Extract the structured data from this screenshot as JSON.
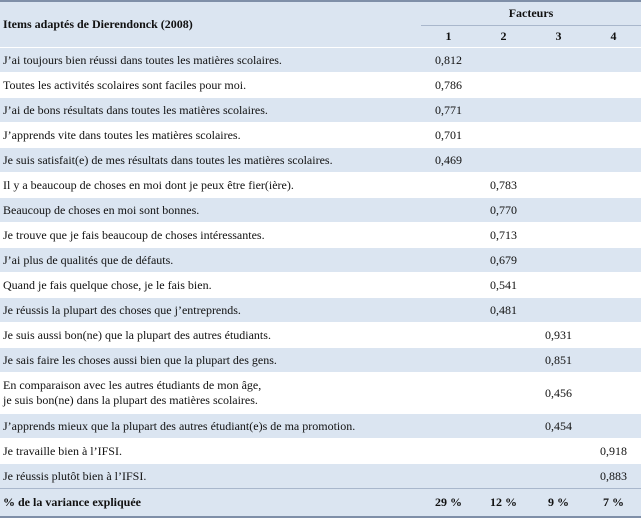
{
  "header": {
    "title": "Items adaptés de Dierendonck (2008)",
    "factors_label": "Facteurs",
    "factor_numbers": [
      "1",
      "2",
      "3",
      "4"
    ]
  },
  "rows": [
    {
      "item": "J’ai toujours bien réussi dans toutes les matières scolaires.",
      "f1": "0,812",
      "f2": "",
      "f3": "",
      "f4": ""
    },
    {
      "item": "Toutes les activités scolaires sont faciles pour moi.",
      "f1": "0,786",
      "f2": "",
      "f3": "",
      "f4": ""
    },
    {
      "item": "J’ai de bons résultats dans toutes les matières scolaires.",
      "f1": "0,771",
      "f2": "",
      "f3": "",
      "f4": ""
    },
    {
      "item": "J’apprends vite dans toutes les matières scolaires.",
      "f1": "0,701",
      "f2": "",
      "f3": "",
      "f4": ""
    },
    {
      "item": "Je suis satisfait(e) de mes résultats dans toutes les matières scolaires.",
      "f1": "0,469",
      "f2": "",
      "f3": "",
      "f4": ""
    },
    {
      "item": "Il y a beaucoup de choses en moi dont je peux être fier(ière).",
      "f1": "",
      "f2": "0,783",
      "f3": "",
      "f4": ""
    },
    {
      "item": "Beaucoup de choses en moi sont bonnes.",
      "f1": "",
      "f2": "0,770",
      "f3": "",
      "f4": ""
    },
    {
      "item": "Je trouve que je fais beaucoup de choses intéressantes.",
      "f1": "",
      "f2": "0,713",
      "f3": "",
      "f4": ""
    },
    {
      "item": "J’ai plus de qualités que de défauts.",
      "f1": "",
      "f2": "0,679",
      "f3": "",
      "f4": ""
    },
    {
      "item": "Quand je fais quelque chose, je le fais bien.",
      "f1": "",
      "f2": "0,541",
      "f3": "",
      "f4": ""
    },
    {
      "item": "Je réussis la plupart des choses que j’entreprends.",
      "f1": "",
      "f2": "0,481",
      "f3": "",
      "f4": ""
    },
    {
      "item": "Je suis aussi bon(ne) que la plupart des autres étudiants.",
      "f1": "",
      "f2": "",
      "f3": "0,931",
      "f4": ""
    },
    {
      "item": "Je sais faire les choses aussi bien que la plupart des gens.",
      "f1": "",
      "f2": "",
      "f3": "0,851",
      "f4": ""
    },
    {
      "item_line1": "En comparaison avec les autres étudiants de mon âge,",
      "item_line2": "je suis bon(ne) dans la plupart des matières scolaires.",
      "f1": "",
      "f2": "",
      "f3": "0,456",
      "f4": ""
    },
    {
      "item": "J’apprends mieux que la plupart des autres étudiant(e)s de ma promotion.",
      "f1": "",
      "f2": "",
      "f3": "0,454",
      "f4": ""
    },
    {
      "item": "Je travaille bien à l’IFSI.",
      "f1": "",
      "f2": "",
      "f3": "",
      "f4": "0,918"
    },
    {
      "item": "Je réussis plutôt bien à l’IFSI.",
      "f1": "",
      "f2": "",
      "f3": "",
      "f4": "0,883"
    }
  ],
  "footer": {
    "label": "% de la variance expliquée",
    "values": [
      "29 %",
      "12 %",
      "9 %",
      "7 %"
    ]
  }
}
